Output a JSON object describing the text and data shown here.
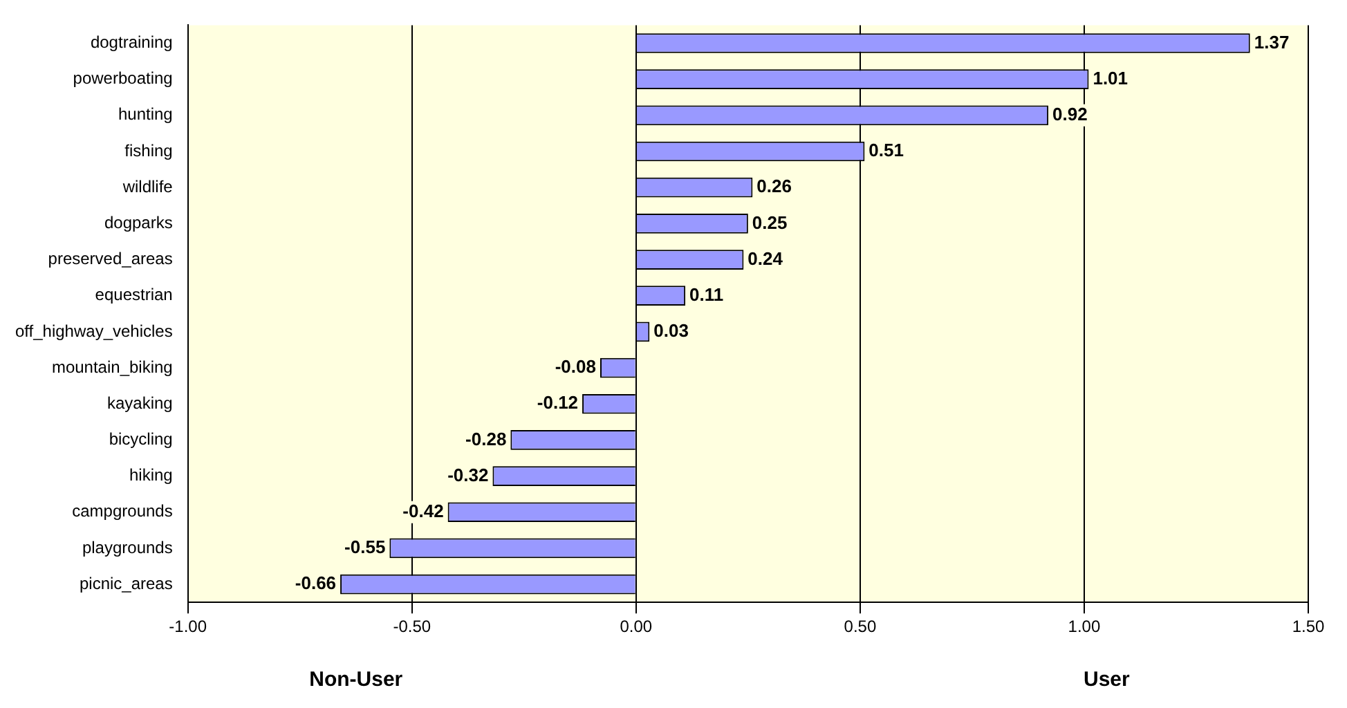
{
  "chart_data": {
    "type": "bar",
    "orientation": "horizontal",
    "categories": [
      "dogtraining",
      "powerboating",
      "hunting",
      "fishing",
      "wildlife",
      "dogparks",
      "preserved_areas",
      "equestrian",
      "off_highway_vehicles",
      "mountain_biking",
      "kayaking",
      "bicycling",
      "hiking",
      "campgrounds",
      "playgrounds",
      "picnic_areas"
    ],
    "values": [
      1.37,
      1.01,
      0.92,
      0.51,
      0.26,
      0.25,
      0.24,
      0.11,
      0.03,
      -0.08,
      -0.12,
      -0.28,
      -0.32,
      -0.42,
      -0.55,
      -0.66
    ],
    "color": "#9999ff",
    "xlim": [
      -1,
      1.5
    ],
    "xticks": [
      {
        "value": -1,
        "label": "-1.00"
      },
      {
        "value": -0.5,
        "label": "-0.50"
      },
      {
        "value": 0,
        "label": "0.00"
      },
      {
        "value": 0.5,
        "label": "0.50"
      },
      {
        "value": 1,
        "label": "1.00"
      },
      {
        "value": 1.5,
        "label": "1.50"
      }
    ],
    "grid": "x",
    "data_labels": true,
    "annotations": [
      "Non-User",
      "User"
    ]
  }
}
